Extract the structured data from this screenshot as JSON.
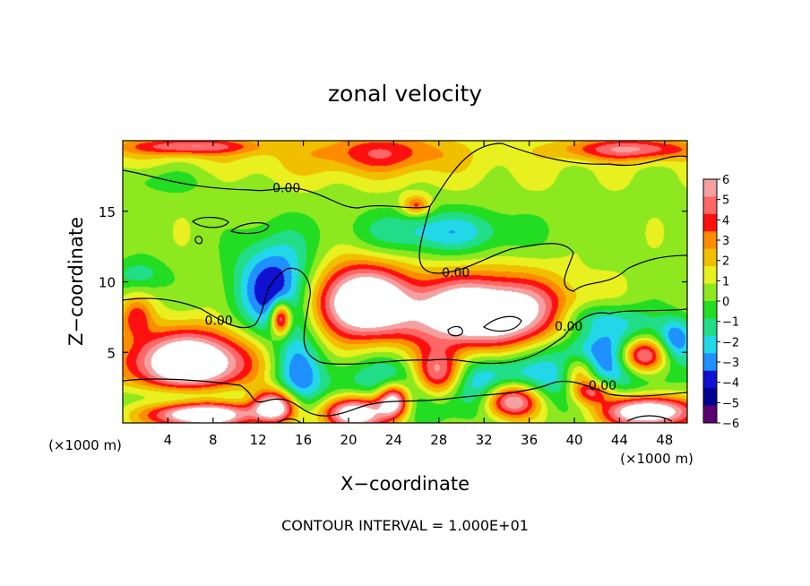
{
  "chart_data": {
    "type": "heatmap",
    "title": "zonal velocity",
    "xlabel": "X−coordinate",
    "ylabel": "Z−coordinate",
    "x_unit_label": "(×1000 m)",
    "x_unit_label_right": "(×1000 m)",
    "footer": "CONTOUR INTERVAL = 1.000E+01",
    "xlim": [
      0,
      50
    ],
    "ylim": [
      0,
      20
    ],
    "x_ticks": [
      4,
      8,
      12,
      16,
      20,
      24,
      28,
      32,
      36,
      40,
      44,
      48
    ],
    "y_ticks": [
      5,
      10,
      15
    ],
    "colorbar": {
      "range": [
        -6,
        6
      ],
      "ticks": [
        "6",
        "5",
        "4",
        "3",
        "2",
        "1",
        "0",
        "−1",
        "−2",
        "−3",
        "−4",
        "−5",
        "−6"
      ],
      "colors": [
        "#f4a0a0",
        "#ff6666",
        "#ff1010",
        "#ff8c00",
        "#f0c000",
        "#e8f020",
        "#8ee820",
        "#22dd22",
        "#22dd88",
        "#22d8e8",
        "#1e90ff",
        "#1010d0",
        "#000090",
        "#5a0070"
      ]
    },
    "contour_labels": [
      {
        "text": "0.00",
        "x": 14.5,
        "y": 16.6
      },
      {
        "text": "0.00",
        "x": 29.5,
        "y": 10.6
      },
      {
        "text": "0.00",
        "x": 8.5,
        "y": 7.2
      },
      {
        "text": "0.00",
        "x": 39.5,
        "y": 6.8
      },
      {
        "text": "0.00",
        "x": 42.5,
        "y": 2.6
      }
    ],
    "blobs": [
      {
        "x": 0,
        "y": 18.5,
        "rx": 40,
        "ry": 1.8,
        "v": 1.0
      },
      {
        "x": 23,
        "y": 19.2,
        "rx": 6,
        "ry": 1.4,
        "v": 3.0
      },
      {
        "x": 45,
        "y": 19.4,
        "rx": 6,
        "ry": 0.8,
        "v": 4.5
      },
      {
        "x": 6,
        "y": 19.6,
        "rx": 6,
        "ry": 0.6,
        "v": 4.0
      },
      {
        "x": 26,
        "y": 15.4,
        "rx": 1.2,
        "ry": 0.7,
        "v": 3.5
      },
      {
        "x": 28,
        "y": 13.5,
        "rx": 7,
        "ry": 1.6,
        "v": -3.0
      },
      {
        "x": 3,
        "y": 17.3,
        "rx": 6,
        "ry": 1.2,
        "v": -1.5
      },
      {
        "x": 1.5,
        "y": 10.5,
        "rx": 2.5,
        "ry": 1.2,
        "v": -2.0
      },
      {
        "x": 13.5,
        "y": 9.5,
        "rx": 3.5,
        "ry": 3.6,
        "v": -5.0
      },
      {
        "x": 14.0,
        "y": 7.4,
        "rx": 0.9,
        "ry": 1.2,
        "v": 7.0
      },
      {
        "x": 15.5,
        "y": 3.2,
        "rx": 2.2,
        "ry": 3.0,
        "v": -3.5
      },
      {
        "x": 21.0,
        "y": 8.6,
        "rx": 4.2,
        "ry": 2.6,
        "v": 8.0
      },
      {
        "x": 32.0,
        "y": 7.8,
        "rx": 7.0,
        "ry": 2.5,
        "v": 9.0
      },
      {
        "x": 6.0,
        "y": 4.3,
        "rx": 5.5,
        "ry": 2.2,
        "v": 8.5
      },
      {
        "x": 1.2,
        "y": 7.5,
        "rx": 1.4,
        "ry": 1.4,
        "v": 3.0
      },
      {
        "x": 30.0,
        "y": 2.8,
        "rx": 10.0,
        "ry": 2.2,
        "v": -4.5
      },
      {
        "x": 28.0,
        "y": 3.4,
        "rx": 2.4,
        "ry": 1.8,
        "v": 8.0
      },
      {
        "x": 34.5,
        "y": 1.6,
        "rx": 2.5,
        "ry": 1.3,
        "v": 8.0
      },
      {
        "x": 24.0,
        "y": 1.6,
        "rx": 1.4,
        "ry": 1.2,
        "v": 7.5
      },
      {
        "x": 20.5,
        "y": 0.7,
        "rx": 2.8,
        "ry": 1.2,
        "v": 8.0
      },
      {
        "x": 13.5,
        "y": 1.2,
        "rx": 2.0,
        "ry": 1.2,
        "v": 8.0
      },
      {
        "x": 7.0,
        "y": 0.6,
        "rx": 4.5,
        "ry": 0.9,
        "v": 8.0
      },
      {
        "x": 6.0,
        "y": 1.8,
        "rx": 6.0,
        "ry": 1.0,
        "v": -2.5
      },
      {
        "x": 43.5,
        "y": 5.0,
        "rx": 5.5,
        "ry": 2.4,
        "v": -4.5
      },
      {
        "x": 46.0,
        "y": 4.8,
        "rx": 2.2,
        "ry": 1.3,
        "v": 8.0
      },
      {
        "x": 40.5,
        "y": 3.6,
        "rx": 1.5,
        "ry": 1.2,
        "v": 4.0
      },
      {
        "x": 41.5,
        "y": 2.2,
        "rx": 1.8,
        "ry": 0.9,
        "v": 5.0
      },
      {
        "x": 46.5,
        "y": 0.8,
        "rx": 4.0,
        "ry": 1.1,
        "v": 8.0
      },
      {
        "x": 42.0,
        "y": 7.5,
        "rx": 3.5,
        "ry": 1.0,
        "v": -2.0
      },
      {
        "x": 49.0,
        "y": 6.0,
        "rx": 1.5,
        "ry": 1.5,
        "v": -3.0
      }
    ]
  }
}
